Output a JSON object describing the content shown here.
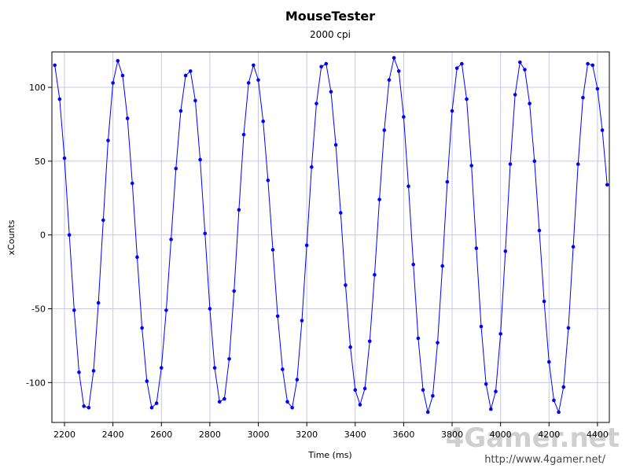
{
  "chart_data": {
    "type": "line",
    "title": "MouseTester",
    "subtitle": "2000 cpi",
    "x_label": "Time (ms)",
    "y_label": "xCounts",
    "xlim": [
      2148,
      4449
    ],
    "ylim": [
      -127,
      124
    ],
    "xticks": [
      2200,
      2400,
      2600,
      2800,
      3000,
      3200,
      3400,
      3600,
      3800,
      4000,
      4200,
      4400
    ],
    "yticks": [
      -100,
      -50,
      0,
      50,
      100
    ],
    "grid": true,
    "markers": true,
    "watermark": [
      "4Gamer.net",
      "http://www.4gamer.net/"
    ],
    "x": [
      2160,
      2180,
      2200,
      2220,
      2240,
      2260,
      2280,
      2300,
      2320,
      2340,
      2360,
      2380,
      2400,
      2420,
      2440,
      2460,
      2480,
      2500,
      2520,
      2540,
      2560,
      2580,
      2600,
      2620,
      2640,
      2660,
      2680,
      2700,
      2720,
      2740,
      2760,
      2780,
      2800,
      2820,
      2840,
      2860,
      2880,
      2900,
      2920,
      2940,
      2960,
      2980,
      3000,
      3020,
      3040,
      3060,
      3080,
      3100,
      3120,
      3140,
      3160,
      3180,
      3200,
      3220,
      3240,
      3260,
      3280,
      3300,
      3320,
      3340,
      3360,
      3380,
      3400,
      3420,
      3440,
      3460,
      3480,
      3500,
      3520,
      3540,
      3560,
      3580,
      3600,
      3620,
      3640,
      3660,
      3680,
      3700,
      3720,
      3740,
      3760,
      3780,
      3800,
      3820,
      3840,
      3860,
      3880,
      3900,
      3920,
      3940,
      3960,
      3980,
      4000,
      4020,
      4040,
      4060,
      4080,
      4100,
      4120,
      4140,
      4160,
      4180,
      4200,
      4220,
      4240,
      4260,
      4280,
      4300,
      4320,
      4340,
      4360,
      4380,
      4400,
      4420,
      4440
    ],
    "series": [
      {
        "name": "xCounts",
        "color": "#0000ff",
        "values": [
          115,
          92,
          52,
          0,
          -51,
          -93,
          -116,
          -117,
          -92,
          -46,
          10,
          64,
          103,
          118,
          108,
          79,
          35,
          -15,
          -63,
          -99,
          -117,
          -114,
          -90,
          -51,
          -3,
          45,
          84,
          108,
          111,
          91,
          51,
          1,
          -50,
          -90,
          -113,
          -111,
          -84,
          -38,
          17,
          68,
          103,
          115,
          105,
          77,
          37,
          -10,
          -55,
          -91,
          -113,
          -117,
          -98,
          -58,
          -7,
          46,
          89,
          114,
          116,
          97,
          61,
          15,
          -34,
          -76,
          -105,
          -115,
          -104,
          -72,
          -27,
          24,
          71,
          105,
          120,
          111,
          80,
          33,
          -20,
          -70,
          -105,
          -120,
          -109,
          -73,
          -21,
          36,
          84,
          113,
          116,
          92,
          47,
          -9,
          -62,
          -101,
          -118,
          -106,
          -67,
          -11,
          48,
          95,
          117,
          112,
          89,
          50,
          3,
          -45,
          -86,
          -112,
          -120,
          -103,
          -63,
          -8,
          48,
          93,
          116,
          115,
          99,
          71,
          34
        ]
      }
    ]
  }
}
